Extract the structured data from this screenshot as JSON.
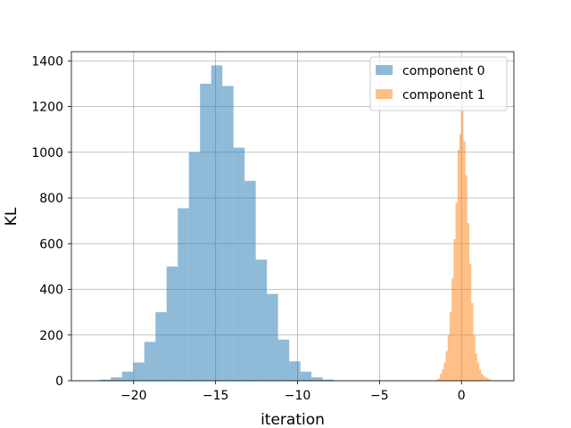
{
  "chart_data": {
    "type": "histogram",
    "title": "",
    "xlabel": "iteration",
    "ylabel": "KL",
    "xlim": [
      -23.8,
      3.2
    ],
    "ylim": [
      0,
      1440
    ],
    "xticks": [
      -20,
      -15,
      -10,
      -5,
      0
    ],
    "yticks": [
      0,
      200,
      400,
      600,
      800,
      1000,
      1200,
      1400
    ],
    "xtick_labels": [
      "−20",
      "−15",
      "−10",
      "−5",
      "0"
    ],
    "ytick_labels": [
      "0",
      "200",
      "400",
      "600",
      "800",
      "1000",
      "1200",
      "1400"
    ],
    "grid": true,
    "legend_position": "top-right",
    "series": [
      {
        "name": "component 0",
        "color": "#1f77b4",
        "opacity": 0.5,
        "bin_width": 0.68,
        "bins": [
          {
            "x0": -22.07,
            "value": 5
          },
          {
            "x0": -21.39,
            "value": 15
          },
          {
            "x0": -20.71,
            "value": 40
          },
          {
            "x0": -20.03,
            "value": 80
          },
          {
            "x0": -19.35,
            "value": 170
          },
          {
            "x0": -18.67,
            "value": 300
          },
          {
            "x0": -17.99,
            "value": 500
          },
          {
            "x0": -17.31,
            "value": 755
          },
          {
            "x0": -16.63,
            "value": 1000
          },
          {
            "x0": -15.95,
            "value": 1300
          },
          {
            "x0": -15.27,
            "value": 1380
          },
          {
            "x0": -14.59,
            "value": 1290
          },
          {
            "x0": -13.91,
            "value": 1020
          },
          {
            "x0": -13.23,
            "value": 875
          },
          {
            "x0": -12.55,
            "value": 530
          },
          {
            "x0": -11.87,
            "value": 380
          },
          {
            "x0": -11.19,
            "value": 180
          },
          {
            "x0": -10.51,
            "value": 85
          },
          {
            "x0": -9.83,
            "value": 40
          },
          {
            "x0": -9.15,
            "value": 15
          },
          {
            "x0": -8.47,
            "value": 5
          }
        ]
      },
      {
        "name": "component 1",
        "color": "#ff7f0e",
        "opacity": 0.5,
        "bin_width": 0.12,
        "bins": [
          {
            "x0": -1.56,
            "value": 5
          },
          {
            "x0": -1.44,
            "value": 10
          },
          {
            "x0": -1.32,
            "value": 30
          },
          {
            "x0": -1.2,
            "value": 50
          },
          {
            "x0": -1.08,
            "value": 80
          },
          {
            "x0": -0.96,
            "value": 130
          },
          {
            "x0": -0.84,
            "value": 200
          },
          {
            "x0": -0.72,
            "value": 300
          },
          {
            "x0": -0.6,
            "value": 450
          },
          {
            "x0": -0.48,
            "value": 620
          },
          {
            "x0": -0.36,
            "value": 780
          },
          {
            "x0": -0.24,
            "value": 1010
          },
          {
            "x0": -0.12,
            "value": 1080
          },
          {
            "x0": 0.0,
            "value": 1240
          },
          {
            "x0": 0.12,
            "value": 1050
          },
          {
            "x0": 0.24,
            "value": 900
          },
          {
            "x0": 0.36,
            "value": 690
          },
          {
            "x0": 0.48,
            "value": 510
          },
          {
            "x0": 0.6,
            "value": 340
          },
          {
            "x0": 0.72,
            "value": 200
          },
          {
            "x0": 0.84,
            "value": 120
          },
          {
            "x0": 0.96,
            "value": 80
          },
          {
            "x0": 1.08,
            "value": 50
          },
          {
            "x0": 1.2,
            "value": 30
          },
          {
            "x0": 1.32,
            "value": 20
          },
          {
            "x0": 1.44,
            "value": 15
          },
          {
            "x0": 1.56,
            "value": 10
          },
          {
            "x0": 1.68,
            "value": 5
          }
        ]
      }
    ]
  }
}
